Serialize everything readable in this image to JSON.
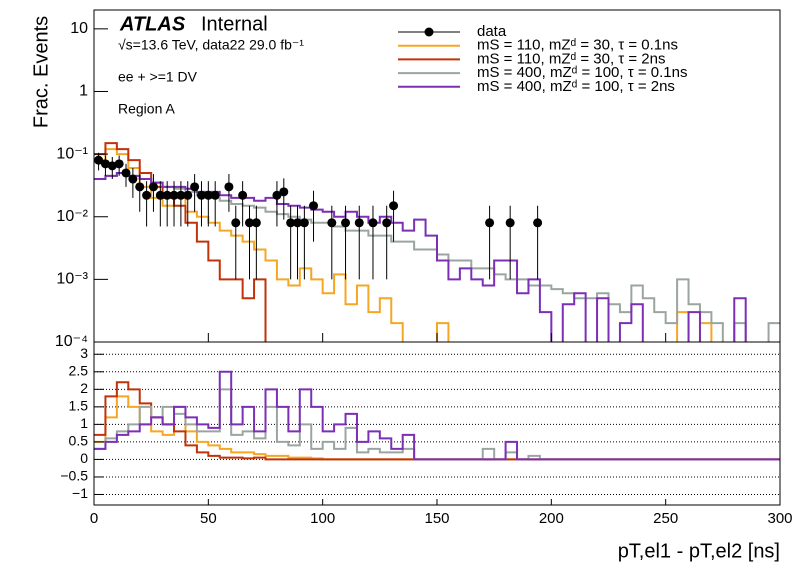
{
  "chart_data": {
    "type": "histogram",
    "experiment": "ATLAS",
    "status": "Internal",
    "lumi": "√s=13.6 TeV, data22 29.0 fb⁻¹",
    "annotations": [
      "ee + >=1 DV",
      "Region A"
    ],
    "ylabel": "Frac. Events",
    "xlabel": "pT,el1 - pT,el2 [ns]",
    "bins": [
      0,
      5,
      10,
      15,
      20,
      25,
      30,
      35,
      40,
      45,
      50,
      55,
      60,
      65,
      70,
      75,
      80,
      85,
      90,
      95,
      100,
      105,
      110,
      115,
      120,
      125,
      130,
      135,
      140,
      145,
      150,
      155,
      160,
      165,
      170,
      175,
      180,
      185,
      190,
      195,
      200,
      205,
      210,
      215,
      220,
      225,
      230,
      235,
      240,
      245,
      250,
      255,
      260,
      265,
      270,
      275,
      280,
      285,
      290,
      295,
      300
    ],
    "xlim": [
      0,
      300
    ],
    "xticks": [
      0,
      50,
      100,
      150,
      200,
      250,
      300
    ],
    "ylim": [
      0.0001,
      20
    ],
    "log": true,
    "yticks": [
      {
        "value": 0.0001,
        "label": "10⁻⁴"
      },
      {
        "value": 0.001,
        "label": "10⁻³"
      },
      {
        "value": 0.01,
        "label": "10⁻²"
      },
      {
        "value": 0.1,
        "label": "10⁻¹"
      },
      1,
      10
    ],
    "data": {
      "name": "data",
      "color": "#000000",
      "x": [
        2,
        5,
        8,
        11,
        14,
        17,
        20,
        23,
        26,
        29,
        32,
        35,
        38,
        41,
        44,
        47,
        50,
        53,
        59,
        62,
        65,
        68,
        71,
        80,
        83,
        86,
        89,
        92,
        96,
        104,
        110,
        116,
        122,
        128,
        131,
        173,
        182,
        194
      ],
      "values": [
        0.08,
        0.07,
        0.065,
        0.07,
        0.05,
        0.04,
        0.03,
        0.022,
        0.03,
        0.022,
        0.022,
        0.022,
        0.022,
        0.022,
        0.03,
        0.022,
        0.022,
        0.022,
        0.03,
        0.008,
        0.022,
        0.008,
        0.008,
        0.022,
        0.025,
        0.008,
        0.008,
        0.008,
        0.015,
        0.008,
        0.008,
        0.008,
        0.008,
        0.008,
        0.015,
        0.008,
        0.008,
        0.008
      ],
      "errors": [
        0.025,
        0.025,
        0.025,
        0.025,
        0.02,
        0.02,
        0.018,
        0.015,
        0.018,
        0.015,
        0.015,
        0.015,
        0.015,
        0.015,
        0.018,
        0.015,
        0.015,
        0.015,
        0.018,
        0.007,
        0.015,
        0.007,
        0.007,
        0.015,
        0.016,
        0.007,
        0.007,
        0.007,
        0.011,
        0.007,
        0.007,
        0.007,
        0.007,
        0.007,
        0.011,
        0.007,
        0.007,
        0.007
      ]
    },
    "series": [
      {
        "name": "mS = 110, mZᵈ = 30, τ = 0.1ns",
        "color": "#f5a623",
        "values": [
          0.08,
          0.12,
          0.1,
          0.06,
          0.03,
          0.02,
          0.015,
          0.02,
          0.012,
          0.01,
          0.008,
          0.006,
          0.005,
          0.004,
          0.003,
          0.002,
          0.001,
          0.0008,
          0.0015,
          0.001,
          0.0006,
          0.0012,
          0.0004,
          0.0008,
          0.0003,
          0.0005,
          0.0002,
          0,
          0,
          0,
          0.0002,
          0,
          0,
          0,
          0,
          0,
          0,
          0,
          0,
          0,
          0,
          0,
          0,
          0,
          0,
          0,
          0,
          0,
          0,
          0,
          0,
          0.0003,
          0,
          0.0002,
          0,
          0,
          0,
          0,
          0,
          0
        ]
      },
      {
        "name": "mS = 110, mZᵈ = 30, τ = 2ns",
        "color": "#c0330a",
        "values": [
          0.1,
          0.15,
          0.12,
          0.08,
          0.05,
          0.03,
          0.02,
          0.015,
          0.008,
          0.004,
          0.002,
          0.001,
          0.001,
          0.0005,
          0.001,
          0,
          0,
          0,
          0,
          0,
          0,
          0,
          0,
          0,
          0,
          0,
          0,
          0,
          0,
          0,
          0,
          0,
          0,
          0,
          0,
          0,
          0,
          0,
          0,
          0,
          0,
          0,
          0,
          0,
          0,
          0,
          0,
          0,
          0,
          0,
          0,
          0,
          0,
          0,
          0,
          0,
          0,
          0,
          0,
          0
        ]
      },
      {
        "name": "mS = 400, mZᵈ = 100, τ = 0.1ns",
        "color": "#9aa5a0",
        "values": [
          0.04,
          0.045,
          0.05,
          0.045,
          0.04,
          0.035,
          0.03,
          0.028,
          0.025,
          0.022,
          0.02,
          0.018,
          0.016,
          0.015,
          0.014,
          0.012,
          0.011,
          0.01,
          0.009,
          0.008,
          0.008,
          0.007,
          0.006,
          0.006,
          0.005,
          0.005,
          0.004,
          0.004,
          0.003,
          0.003,
          0.0025,
          0.002,
          0.002,
          0.0015,
          0.0015,
          0.0012,
          0.001,
          0.001,
          0.0008,
          0.0008,
          0.0007,
          0.0006,
          0.0005,
          0.0005,
          0.0006,
          0.0004,
          0.0003,
          0.0008,
          0.0005,
          0.0003,
          0.0002,
          0.001,
          0.0004,
          0.0003,
          0.0002,
          0,
          0.0002,
          0,
          0,
          0.0002
        ]
      },
      {
        "name": "mS = 400, mZᵈ = 100, τ = 2ns",
        "color": "#7b2fb5",
        "values": [
          0.04,
          0.045,
          0.05,
          0.045,
          0.04,
          0.035,
          0.03,
          0.03,
          0.028,
          0.025,
          0.025,
          0.022,
          0.02,
          0.02,
          0.018,
          0.02,
          0.016,
          0.015,
          0.014,
          0.013,
          0.012,
          0.01,
          0.012,
          0.01,
          0.008,
          0.01,
          0.008,
          0.006,
          0.009,
          0.005,
          0.002,
          0.001,
          0.0015,
          0.001,
          0.0008,
          0.002,
          0.002,
          0.0006,
          0.001,
          0.0003,
          0,
          0.0004,
          0.0006,
          0,
          0.0005,
          0,
          0.0002,
          0.0004,
          0,
          0,
          0,
          0,
          0.0003,
          0,
          0,
          0,
          0.0005,
          0,
          0,
          0
        ]
      }
    ],
    "ratio": {
      "ylim": [
        -1.3,
        3.35
      ],
      "grid": true,
      "yticks": [
        {
          "value": -1,
          "label": "−1"
        },
        {
          "value": -0.5,
          "label": "−0.5"
        },
        0,
        0.5,
        1,
        1.5,
        2,
        2.5,
        3
      ],
      "values": [
        [
          0.5,
          1.2,
          1.8,
          1.5,
          1.0,
          0.8,
          0.7,
          1.5,
          0.8,
          0.5,
          0.4,
          0.3,
          0.2,
          0.2,
          0.15,
          0.1,
          0.1,
          0.05,
          0.05,
          0.03,
          0,
          0,
          0,
          0,
          0,
          0,
          0,
          0,
          0,
          0,
          0,
          0,
          0,
          0,
          0,
          0,
          0,
          0,
          0,
          0,
          0,
          0,
          0,
          0,
          0,
          0,
          0,
          0,
          0,
          0,
          0,
          0,
          0,
          0,
          0,
          0,
          0,
          0,
          0,
          0
        ],
        [
          0.7,
          1.8,
          2.2,
          2.0,
          1.6,
          1.2,
          1.0,
          0.8,
          0.4,
          0.2,
          0.1,
          0.05,
          0.05,
          0.03,
          0.05,
          0,
          0,
          0,
          0,
          0,
          0,
          0,
          0,
          0,
          0,
          0,
          0,
          0,
          0,
          0,
          0,
          0,
          0,
          0,
          0,
          0,
          0,
          0,
          0,
          0,
          0,
          0,
          0,
          0,
          0,
          0,
          0,
          0,
          0,
          0,
          0,
          0,
          0,
          0,
          0,
          0,
          0,
          0,
          0,
          0
        ],
        [
          0.3,
          0.6,
          0.8,
          1.0,
          1.5,
          1.2,
          1.5,
          1.3,
          1.0,
          0.8,
          0.8,
          2.0,
          0.7,
          0.8,
          0.6,
          1.5,
          0.5,
          0.4,
          1.0,
          0.3,
          0.5,
          0.3,
          0.9,
          0.2,
          0.3,
          0.2,
          0.2,
          0.3,
          0,
          0,
          0,
          0,
          0,
          0,
          0.3,
          0,
          0.2,
          0,
          0.1,
          0,
          0,
          0,
          0,
          0,
          0,
          0,
          0,
          0,
          0,
          0,
          0,
          0,
          0,
          0,
          0,
          0,
          0,
          0,
          0,
          0
        ],
        [
          0.3,
          0.5,
          0.7,
          0.8,
          1.0,
          1.2,
          1.0,
          1.5,
          1.2,
          1.0,
          0.9,
          2.5,
          1.0,
          1.5,
          0.8,
          2.0,
          1.5,
          0.8,
          2.0,
          1.5,
          0.8,
          1.0,
          1.3,
          0.5,
          0.8,
          0.6,
          0.3,
          0.7,
          0,
          0,
          0,
          0,
          0,
          0,
          0,
          0,
          0.5,
          0,
          0,
          0,
          0,
          0,
          0,
          0,
          0,
          0,
          0,
          0,
          0,
          0,
          0,
          0,
          0,
          0,
          0,
          0,
          0,
          0,
          0,
          0
        ]
      ]
    }
  }
}
